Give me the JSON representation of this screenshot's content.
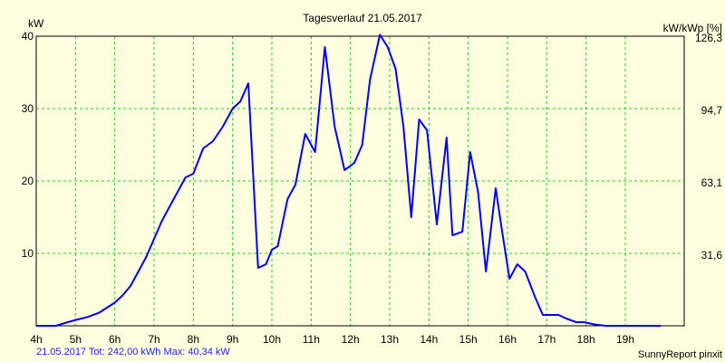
{
  "chart_data": {
    "type": "line",
    "title": "Tagesverlauf 21.05.2017",
    "ylabel_left": "kW",
    "ylabel_right": "kW/kWp [%]",
    "xlim": [
      4,
      20.5
    ],
    "ylim": [
      0,
      40
    ],
    "right_ylim": [
      0,
      126.3
    ],
    "x_ticks": [
      {
        "value": 4,
        "label": "4h"
      },
      {
        "value": 5,
        "label": "5h"
      },
      {
        "value": 6,
        "label": "6h"
      },
      {
        "value": 7,
        "label": "7h"
      },
      {
        "value": 8,
        "label": "8h"
      },
      {
        "value": 9,
        "label": "9h"
      },
      {
        "value": 10,
        "label": "10h"
      },
      {
        "value": 11,
        "label": "11h"
      },
      {
        "value": 12,
        "label": "12h"
      },
      {
        "value": 13,
        "label": "13h"
      },
      {
        "value": 14,
        "label": "14h"
      },
      {
        "value": 15,
        "label": "15h"
      },
      {
        "value": 16,
        "label": "16h"
      },
      {
        "value": 17,
        "label": "17h"
      },
      {
        "value": 18,
        "label": "18h"
      },
      {
        "value": 19,
        "label": "19h"
      }
    ],
    "y_ticks_left": [
      {
        "value": 10,
        "label": "10"
      },
      {
        "value": 20,
        "label": "20"
      },
      {
        "value": 30,
        "label": "30"
      },
      {
        "value": 40,
        "label": "40"
      }
    ],
    "y_ticks_right": [
      {
        "value": 10,
        "label": "31,6"
      },
      {
        "value": 20,
        "label": "63,1"
      },
      {
        "value": 30,
        "label": "94,7"
      },
      {
        "value": 40,
        "label": "126,3"
      }
    ],
    "grid": true,
    "series": [
      {
        "color": "#0000ee",
        "x": [
          4.0,
          4.5,
          4.8,
          5.0,
          5.3,
          5.6,
          5.8,
          6.0,
          6.2,
          6.4,
          6.6,
          6.8,
          7.0,
          7.2,
          7.4,
          7.6,
          7.8,
          8.0,
          8.25,
          8.5,
          8.75,
          9.0,
          9.2,
          9.4,
          9.65,
          9.85,
          10.0,
          10.15,
          10.4,
          10.6,
          10.85,
          11.1,
          11.35,
          11.6,
          11.85,
          12.1,
          12.3,
          12.5,
          12.75,
          12.95,
          13.15,
          13.35,
          13.55,
          13.75,
          13.95,
          14.2,
          14.45,
          14.6,
          14.85,
          15.05,
          15.25,
          15.45,
          15.7,
          15.85,
          16.05,
          16.25,
          16.45,
          16.7,
          16.9,
          17.15,
          17.3,
          17.5,
          17.75,
          17.95,
          18.2,
          18.5,
          18.8,
          19.1,
          19.4,
          19.7,
          19.9
        ],
        "y": [
          0,
          0,
          0.5,
          0.8,
          1.2,
          1.8,
          2.5,
          3.2,
          4.2,
          5.5,
          7.5,
          9.5,
          12.0,
          14.5,
          16.5,
          18.5,
          20.5,
          21.0,
          24.5,
          25.5,
          27.5,
          30.0,
          31.0,
          33.5,
          8.0,
          8.5,
          10.5,
          11.0,
          17.5,
          19.5,
          26.5,
          24.0,
          38.5,
          27.5,
          21.5,
          22.5,
          25.0,
          34.0,
          40.2,
          38.5,
          35.5,
          27.5,
          15.0,
          28.5,
          27.0,
          14.0,
          26.0,
          12.5,
          13.0,
          24.0,
          18.5,
          7.5,
          19.0,
          13.5,
          6.5,
          8.5,
          7.5,
          4.0,
          1.5,
          1.5,
          1.5,
          1.0,
          0.5,
          0.5,
          0.2,
          0,
          0,
          0,
          0,
          0,
          0
        ]
      }
    ]
  },
  "footer": {
    "left": "21.05.2017 Tot: 242,00 kWh Max: 40,34 kW",
    "right": "SunnyReport pinxit"
  }
}
